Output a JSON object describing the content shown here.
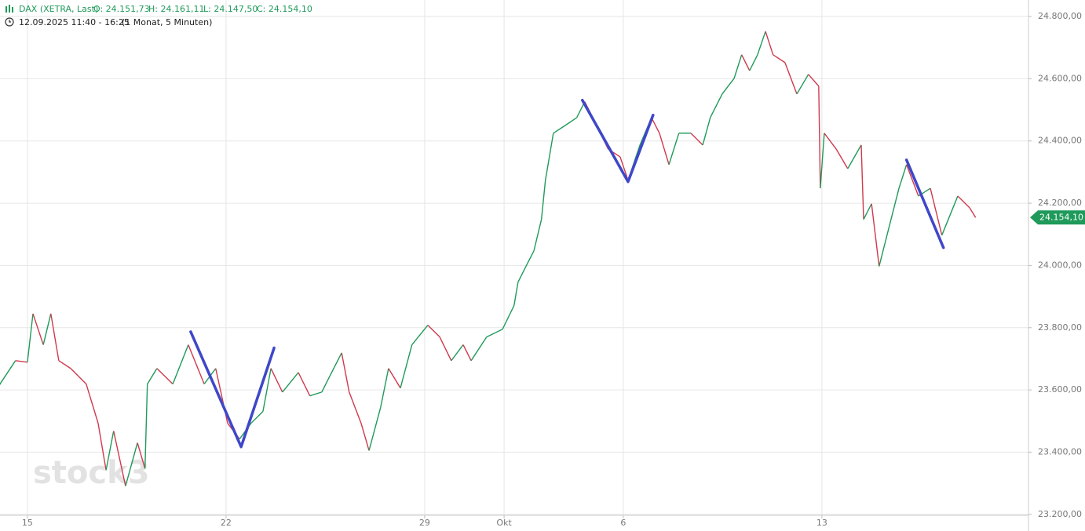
{
  "chart_data": {
    "type": "line",
    "title": "DAX (XETRA, Last)",
    "ohlc": {
      "open": "O: 24.151,73",
      "high": "H: 24.161,11",
      "low": "L: 24.147,50",
      "close": "C: 24.154,10"
    },
    "subtitle": "12.09.2025 11:40 - 16:25",
    "period": "(1 Monat, 5 Minuten)",
    "watermark": "stock3",
    "last_price": {
      "value": 24154.1,
      "label": "24.154,10"
    },
    "up_color": "#1f9a5a",
    "down_color": "#d0394c",
    "drawing_color": "#3f47c8",
    "grid": true,
    "xlim": [
      -0.69,
      25.2
    ],
    "xticks": [
      {
        "value": 0,
        "label": "15"
      },
      {
        "value": 5,
        "label": "22"
      },
      {
        "value": 10,
        "label": "29"
      },
      {
        "value": 12,
        "label": "Okt"
      },
      {
        "value": 15,
        "label": "6"
      },
      {
        "value": 20,
        "label": "13"
      }
    ],
    "ylim": [
      23197,
      24853
    ],
    "yticks": [
      {
        "value": 23200,
        "label": "23.200,00"
      },
      {
        "value": 23400,
        "label": "23.400,00"
      },
      {
        "value": 23600,
        "label": "23.600,00"
      },
      {
        "value": 23800,
        "label": "23.800,00"
      },
      {
        "value": 24000,
        "label": "24.000,00"
      },
      {
        "value": 24200,
        "label": "24.200,00"
      },
      {
        "value": 24400,
        "label": "24.400,00"
      },
      {
        "value": 24600,
        "label": "24.600,00"
      },
      {
        "value": 24800,
        "label": "24.800,00"
      }
    ],
    "x": [
      -0.69,
      -0.3,
      0,
      0.14,
      0.4,
      0.59,
      0.79,
      1.09,
      1.48,
      1.78,
      1.98,
      2.17,
      2.47,
      2.77,
      2.96,
      3.02,
      3.26,
      3.66,
      4.05,
      4.45,
      4.74,
      5.04,
      5.34,
      5.63,
      5.93,
      6.13,
      6.42,
      6.82,
      7.11,
      7.41,
      7.61,
      7.91,
      8.1,
      8.4,
      8.6,
      8.89,
      9.09,
      9.39,
      9.68,
      10.08,
      10.38,
      10.67,
      10.97,
      11.17,
      11.56,
      11.96,
      12.25,
      12.35,
      12.55,
      12.75,
      12.94,
      13.04,
      13.24,
      13.54,
      13.83,
      14.03,
      14.33,
      14.62,
      14.92,
      15.12,
      15.42,
      15.71,
      15.91,
      16.15,
      16.4,
      16.7,
      17,
      17.19,
      17.49,
      17.79,
      17.98,
      18.18,
      18.38,
      18.58,
      18.77,
      19.07,
      19.37,
      19.66,
      19.92,
      19.96,
      20.06,
      20.36,
      20.65,
      20.99,
      21.05,
      21.25,
      21.44,
      21.74,
      21.94,
      22.13,
      22.43,
      22.73,
      23.02,
      23.22,
      23.42,
      23.72,
      23.87
    ],
    "series": [
      {
        "name": "DAX (XETRA, Last)",
        "values": [
          23619,
          23694,
          23689,
          23845,
          23745,
          23845,
          23694,
          23669,
          23619,
          23493,
          23342,
          23468,
          23291,
          23430,
          23347,
          23619,
          23669,
          23619,
          23745,
          23619,
          23669,
          23493,
          23442,
          23493,
          23531,
          23669,
          23593,
          23656,
          23581,
          23593,
          23644,
          23719,
          23593,
          23493,
          23405,
          23543,
          23669,
          23606,
          23745,
          23808,
          23770,
          23694,
          23745,
          23694,
          23770,
          23795,
          23871,
          23946,
          23997,
          24047,
          24148,
          24274,
          24425,
          24450,
          24475,
          24526,
          24450,
          24374,
          24349,
          24274,
          24387,
          24475,
          24425,
          24324,
          24425,
          24425,
          24387,
          24475,
          24551,
          24601,
          24677,
          24626,
          24677,
          24752,
          24677,
          24652,
          24551,
          24614,
          24576,
          24248,
          24425,
          24374,
          24311,
          24387,
          24148,
          24198,
          23997,
          24148,
          24248,
          24324,
          24223,
          24248,
          24097,
          24160,
          24223,
          24185,
          24154
        ]
      }
    ],
    "drawings": [
      {
        "x": [
          4.11,
          5.38,
          6.21
        ],
        "y": [
          23787,
          23417,
          23735
        ]
      },
      {
        "x": [
          13.97,
          15.12,
          15.75
        ],
        "y": [
          24531,
          24269,
          24483
        ]
      },
      {
        "x": [
          22.13,
          23.06
        ],
        "y": [
          24339,
          24057
        ]
      }
    ]
  }
}
